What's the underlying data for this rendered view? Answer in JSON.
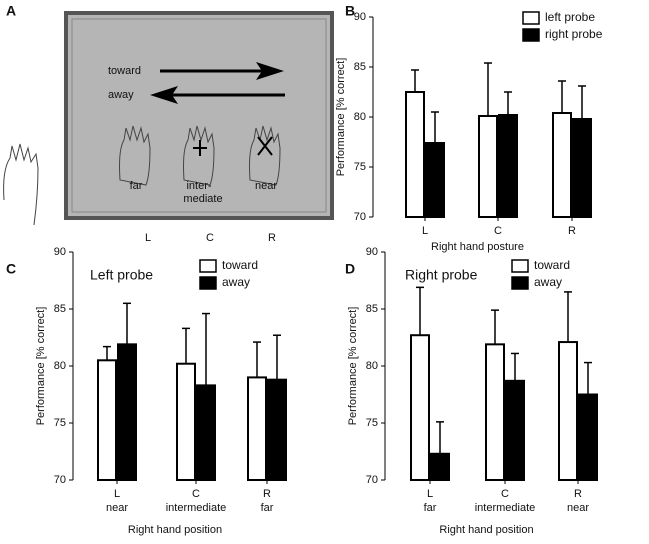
{
  "diagram": {
    "label": "A",
    "arrows": [
      "toward",
      "away"
    ],
    "hand_labels": [
      [
        "far"
      ],
      [
        "inter-",
        "mediate"
      ],
      [
        "near"
      ]
    ],
    "positions": [
      "L",
      "C",
      "R"
    ]
  },
  "chart_data": [
    {
      "type": "bar",
      "panel": "B",
      "x_label": "Right hand posture",
      "y_label": "Performance [% correct]",
      "categories": [
        "L",
        "C",
        "R"
      ],
      "series": [
        {
          "name": "left probe",
          "color": "#ffffff",
          "values": [
            82.5,
            80.1,
            80.4
          ],
          "errors": [
            2.2,
            5.3,
            3.2
          ]
        },
        {
          "name": "right probe",
          "color": "#000000",
          "values": [
            77.4,
            80.2,
            79.8
          ],
          "errors": [
            3.1,
            2.3,
            3.3
          ]
        }
      ],
      "ylim": [
        70,
        90
      ],
      "yticks": [
        70,
        75,
        80,
        85,
        90
      ],
      "legend": "upper right"
    },
    {
      "type": "bar",
      "panel": "C",
      "title": "Left probe",
      "x_label": "Right hand position",
      "y_label": "Performance [% correct]",
      "categories": [
        "L",
        "C",
        "R"
      ],
      "sublabels": [
        "near",
        "intermediate",
        "far"
      ],
      "series": [
        {
          "name": "toward",
          "color": "#ffffff",
          "values": [
            80.5,
            80.2,
            79.0
          ],
          "errors": [
            1.2,
            3.1,
            3.1
          ]
        },
        {
          "name": "away",
          "color": "#000000",
          "values": [
            81.9,
            78.3,
            78.8
          ],
          "errors": [
            3.6,
            6.3,
            3.9
          ]
        }
      ],
      "ylim": [
        70,
        90
      ],
      "yticks": [
        70,
        75,
        80,
        85,
        90
      ],
      "legend": "upper right"
    },
    {
      "type": "bar",
      "panel": "D",
      "title": "Right probe",
      "x_label": "Right hand position",
      "y_label": "Performance [% correct]",
      "categories": [
        "L",
        "C",
        "R"
      ],
      "sublabels": [
        "far",
        "intermediate",
        "near"
      ],
      "series": [
        {
          "name": "toward",
          "color": "#ffffff",
          "values": [
            82.7,
            81.9,
            82.1
          ],
          "errors": [
            4.2,
            3.0,
            4.4
          ]
        },
        {
          "name": "away",
          "color": "#000000",
          "values": [
            72.3,
            78.7,
            77.5
          ],
          "errors": [
            2.8,
            2.4,
            2.8
          ]
        }
      ],
      "ylim": [
        70,
        90
      ],
      "yticks": [
        70,
        75,
        80,
        85,
        90
      ],
      "legend": "upper right"
    }
  ]
}
